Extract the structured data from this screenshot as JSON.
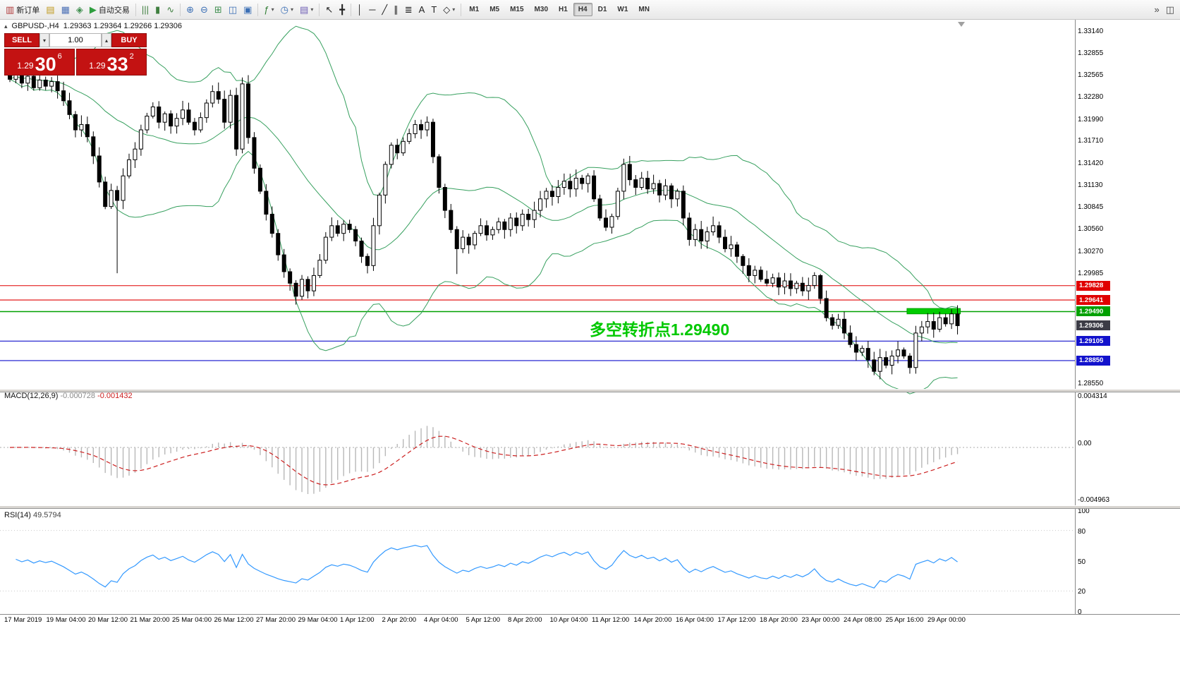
{
  "toolbar": {
    "timeframes": [
      "M1",
      "M5",
      "M15",
      "M30",
      "H1",
      "H4",
      "D1",
      "W1",
      "MN"
    ],
    "active_timeframe": "H4",
    "groups": [
      {
        "name": "standard",
        "buttons": [
          {
            "name": "new-order-button",
            "glyph": "▥",
            "color": "#b03a3a",
            "label": "新订单"
          },
          {
            "name": "market-watch-button",
            "glyph": "▤",
            "color": "#c09a20"
          },
          {
            "name": "data-window-button",
            "glyph": "▦",
            "color": "#4a6fb5"
          },
          {
            "name": "navigator-button",
            "glyph": "◈",
            "color": "#3f8f4f"
          },
          {
            "name": "autotrading-button",
            "glyph": "▶",
            "color": "#2e9e3e",
            "label": "自动交易"
          }
        ]
      },
      {
        "name": "chart-types",
        "buttons": [
          {
            "name": "bar-chart-button",
            "glyph": "|||",
            "color": "#3f7f3f"
          },
          {
            "name": "candlestick-chart-button",
            "glyph": "▮",
            "color": "#3f7f3f"
          },
          {
            "name": "line-chart-button",
            "glyph": "∿",
            "color": "#3f7f3f"
          }
        ]
      },
      {
        "name": "zoom",
        "buttons": [
          {
            "name": "zoom-in-button",
            "glyph": "⊕",
            "color": "#3b6fb5"
          },
          {
            "name": "zoom-out-button",
            "glyph": "⊖",
            "color": "#3b6fb5"
          },
          {
            "name": "auto-arrange-button",
            "glyph": "⊞",
            "color": "#3f8f4f"
          },
          {
            "name": "tile-windows-button",
            "glyph": "◫",
            "color": "#3b6fb5"
          },
          {
            "name": "cascade-windows-button",
            "glyph": "▣",
            "color": "#3b6fb5"
          }
        ]
      },
      {
        "name": "objects",
        "buttons": [
          {
            "name": "indicators-button",
            "glyph": "ƒ",
            "color": "#2e7d32",
            "caret": true
          },
          {
            "name": "periods-button",
            "glyph": "◷",
            "color": "#3b6fb5",
            "caret": true
          },
          {
            "name": "templates-button",
            "glyph": "▤",
            "color": "#6f5fb5",
            "caret": true
          }
        ]
      },
      {
        "name": "cursors",
        "buttons": [
          {
            "name": "cursor-button",
            "glyph": "↖",
            "color": "#222"
          },
          {
            "name": "crosshair-button",
            "glyph": "╋",
            "color": "#222"
          }
        ]
      },
      {
        "name": "draw-tools",
        "buttons": [
          {
            "name": "vertical-line-button",
            "glyph": "│",
            "color": "#222"
          },
          {
            "name": "horizontal-line-button",
            "glyph": "─",
            "color": "#222"
          },
          {
            "name": "trendline-button",
            "glyph": "╱",
            "color": "#222"
          },
          {
            "name": "channel-button",
            "glyph": "∥",
            "color": "#222"
          },
          {
            "name": "fibonacci-button",
            "glyph": "≣",
            "color": "#222"
          },
          {
            "name": "text-button",
            "glyph": "A",
            "color": "#222"
          },
          {
            "name": "label-button",
            "glyph": "T",
            "color": "#222"
          },
          {
            "name": "shapes-button",
            "glyph": "◇",
            "color": "#222",
            "caret": true
          }
        ]
      },
      {
        "name": "timeframes"
      },
      {
        "name": "corner",
        "buttons": [
          {
            "name": "toolbar-overflow-button",
            "glyph": "»",
            "color": "#444"
          },
          {
            "name": "dock-panel-button",
            "glyph": "◫",
            "color": "#444"
          }
        ]
      }
    ]
  },
  "icons": {
    "spinner_down": "▾",
    "spinner_up": "▴",
    "chart_marker": "▴"
  },
  "chart_header": {
    "symbol": "GBPUSD-,H4",
    "ohlc": "1.29363 1.29364 1.29266 1.29306"
  },
  "trade_panel": {
    "sell_label": "SELL",
    "buy_label": "BUY",
    "volume": "1.00",
    "sell_prefix": "1.29",
    "sell_digits": "30",
    "sell_sup": "6",
    "buy_prefix": "1.29",
    "buy_digits": "33",
    "buy_sup": "2"
  },
  "annotation": {
    "text": "多空转折点1.29490",
    "color": "#00c800"
  },
  "price_axis": {
    "labels": [
      "1.33140",
      "1.32855",
      "1.32565",
      "1.32280",
      "1.31990",
      "1.31710",
      "1.31420",
      "1.31130",
      "1.30845",
      "1.30560",
      "1.30270",
      "1.29985",
      "1.28550"
    ]
  },
  "levels": [
    {
      "label": "1.29828",
      "price": 1.29828,
      "color": "#e00000",
      "line": true
    },
    {
      "label": "1.29641",
      "price": 1.29641,
      "color": "#e00000",
      "line": true
    },
    {
      "label": "1.29490",
      "price": 1.2949,
      "color": "#00a000",
      "line": true
    },
    {
      "label": "1.29306",
      "price": 1.29306,
      "color": "#3c3c46",
      "line": false
    },
    {
      "label": "1.29105",
      "price": 1.29105,
      "color": "#1212cc",
      "line": true
    },
    {
      "label": "1.28850",
      "price": 1.2885,
      "color": "#1212cc",
      "line": true
    }
  ],
  "highlight_box": {
    "start_index": 151,
    "end_index": 159,
    "price_top": 1.2953,
    "price_bottom": 1.2946,
    "color": "#00cc00",
    "border": "#00a000"
  },
  "macd": {
    "title": "MACD(12,26,9)",
    "value_main": "-0.000728",
    "value_signal": "-0.001432",
    "scale": [
      "0.004314",
      "0.00",
      "-0.004963"
    ]
  },
  "rsi": {
    "title": "RSI(14)",
    "value": "49.5794",
    "scale": [
      "100",
      "80",
      "50",
      "20",
      "0"
    ]
  },
  "time_axis": [
    "17 Mar 2019",
    "19 Mar 04:00",
    "20 Mar 12:00",
    "21 Mar 20:00",
    "25 Mar 04:00",
    "26 Mar 12:00",
    "27 Mar 20:00",
    "29 Mar 04:00",
    "1 Apr 12:00",
    "2 Apr 20:00",
    "4 Apr 04:00",
    "5 Apr 12:00",
    "8 Apr 20:00",
    "10 Apr 04:00",
    "11 Apr 12:00",
    "14 Apr 20:00",
    "16 Apr 04:00",
    "17 Apr 12:00",
    "18 Apr 20:00",
    "23 Apr 00:00",
    "24 Apr 08:00",
    "25 Apr 16:00",
    "29 Apr 00:00"
  ],
  "colors": {
    "bollinger": "#37a05f",
    "bull": "#ffffff",
    "bear": "#000000",
    "wick": "#000000",
    "macd_hist": "#b8b8b8",
    "macd_signal": "#cc2020",
    "rsi_line": "#3399ff",
    "level_red": "#e00000",
    "level_blue": "#1212cc",
    "level_green": "#00a000",
    "trade_red": "#c31212"
  },
  "chart_data": {
    "type": "candlestick",
    "symbol": "GBPUSD-",
    "timeframe": "H4",
    "indicators": [
      "Bollinger Bands",
      "MACD(12,26,9)",
      "RSI(14)"
    ],
    "visible_price_range": [
      1.2855,
      1.333
    ],
    "closes": [
      1.3252,
      1.326,
      1.3247,
      1.3256,
      1.3241,
      1.3251,
      1.3243,
      1.3249,
      1.3237,
      1.3224,
      1.3206,
      1.3186,
      1.3193,
      1.3177,
      1.3152,
      1.3118,
      1.3086,
      1.3107,
      1.3094,
      1.3126,
      1.3147,
      1.3161,
      1.3186,
      1.3204,
      1.3216,
      1.3196,
      1.3207,
      1.3191,
      1.3201,
      1.3212,
      1.3196,
      1.3186,
      1.3202,
      1.3221,
      1.3236,
      1.3226,
      1.3196,
      1.3231,
      1.3161,
      1.3246,
      1.3176,
      1.3136,
      1.3106,
      1.3076,
      1.3051,
      1.3023,
      1.3001,
      1.2986,
      1.2969,
      1.2991,
      1.2976,
      1.2996,
      1.3016,
      1.3046,
      1.3061,
      1.3051,
      1.3063,
      1.3056,
      1.3041,
      1.3021,
      1.3009,
      1.3061,
      1.3101,
      1.3141,
      1.3166,
      1.3156,
      1.3171,
      1.3181,
      1.3193,
      1.3186,
      1.3196,
      1.3151,
      1.3111,
      1.3081,
      1.3056,
      1.3031,
      1.3046,
      1.3036,
      1.3051,
      1.3061,
      1.3049,
      1.3056,
      1.3066,
      1.3056,
      1.3071,
      1.3061,
      1.3076,
      1.3069,
      1.3081,
      1.3096,
      1.3106,
      1.3099,
      1.3111,
      1.3119,
      1.3109,
      1.3123,
      1.3116,
      1.3126,
      1.3096,
      1.3071,
      1.3059,
      1.3073,
      1.3106,
      1.3141,
      1.3121,
      1.3111,
      1.3123,
      1.3109,
      1.3116,
      1.3101,
      1.3113,
      1.3096,
      1.3106,
      1.3071,
      1.3043,
      1.3056,
      1.3041,
      1.3053,
      1.3061,
      1.3046,
      1.3031,
      1.3036,
      1.3021,
      1.3009,
      1.2996,
      1.3003,
      1.2991,
      1.2986,
      1.2993,
      1.2981,
      1.2989,
      1.2979,
      1.2986,
      1.2976,
      1.2983,
      1.2996,
      1.2966,
      1.2941,
      1.2931,
      1.2939,
      1.2921,
      1.2906,
      1.2896,
      1.2901,
      1.2886,
      1.2871,
      1.2889,
      1.2879,
      1.2891,
      1.2899,
      1.2891,
      1.2876,
      1.2921,
      1.2929,
      1.2936,
      1.2926,
      1.2941,
      1.2933,
      1.2946,
      1.29306
    ],
    "wick_overrides": {
      "18": {
        "low": 1.2999
      },
      "75": {
        "low": 1.2998
      },
      "136": {
        "high": 1.2998
      },
      "145": {
        "low": 1.2866
      },
      "151": {
        "low": 1.2868
      }
    }
  }
}
